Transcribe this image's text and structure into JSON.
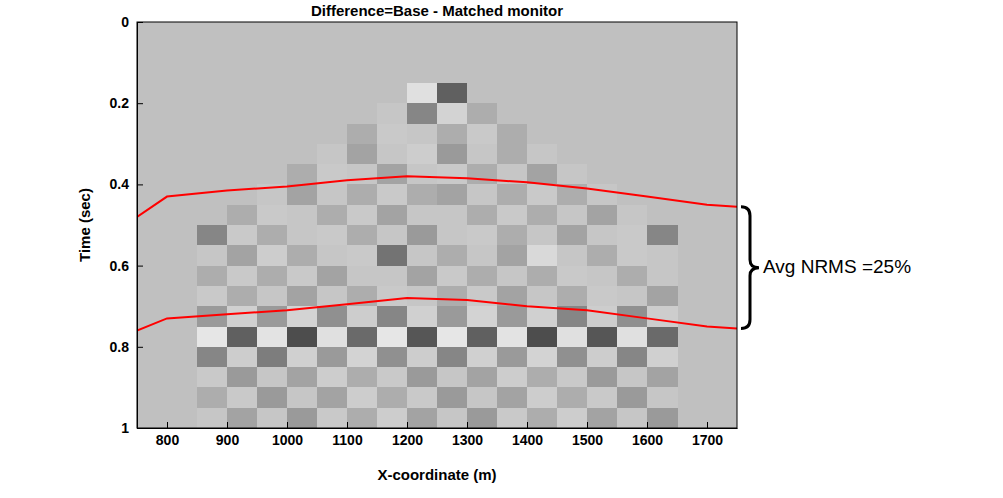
{
  "chart_data": {
    "type": "heatmap",
    "title": "Difference=Base - Matched monitor",
    "x_label": "X-coordinate (m)",
    "y_label": "Time (sec)",
    "xlim": [
      750,
      1750
    ],
    "ylim": [
      0,
      1
    ],
    "xticks": [
      800,
      900,
      1000,
      1100,
      1200,
      1300,
      1400,
      1500,
      1600,
      1700
    ],
    "yticks": [
      0,
      0.2,
      0.4,
      0.6,
      0.8,
      1
    ],
    "clim": [
      -1,
      1
    ],
    "x_bins": [
      850,
      900,
      950,
      1000,
      1050,
      1100,
      1150,
      1200,
      1250,
      1300,
      1350,
      1400,
      1450,
      1500,
      1550,
      1600,
      1650
    ],
    "y_bins": [
      0,
      0.05,
      0.1,
      0.15,
      0.2,
      0.25,
      0.3,
      0.35,
      0.4,
      0.45,
      0.5,
      0.55,
      0.6,
      0.65,
      0.7,
      0.75,
      0.8,
      0.85,
      0.9,
      0.95,
      1
    ],
    "cells": [
      [
        0,
        0,
        0,
        0,
        0,
        0,
        0,
        0,
        0,
        0,
        0,
        0,
        0,
        0,
        0,
        0
      ],
      [
        0,
        0,
        0,
        0,
        0,
        0,
        0,
        0,
        0,
        0,
        0,
        0,
        0,
        0,
        0,
        0
      ],
      [
        0,
        0,
        0,
        0,
        0,
        0,
        0,
        0,
        0,
        0,
        0,
        0,
        0,
        0,
        0,
        0
      ],
      [
        0,
        0,
        0,
        0,
        0,
        0,
        0,
        0.5,
        -0.5,
        0,
        0,
        0,
        0,
        0,
        0,
        0
      ],
      [
        0,
        0,
        0,
        0,
        0,
        0,
        0.1,
        -0.3,
        0.3,
        -0.1,
        0,
        0,
        0,
        0,
        0,
        0
      ],
      [
        0,
        0,
        0,
        0,
        0,
        -0.1,
        0.15,
        0.1,
        -0.1,
        0.15,
        -0.1,
        0,
        0,
        0,
        0,
        0
      ],
      [
        0,
        0,
        0,
        0,
        0.1,
        -0.15,
        0.1,
        0.2,
        -0.2,
        0.1,
        -0.1,
        0.1,
        0,
        0,
        0,
        0
      ],
      [
        0,
        0,
        0,
        -0.1,
        0.15,
        0.1,
        -0.15,
        0.1,
        0.15,
        -0.1,
        0.1,
        -0.15,
        0.1,
        0,
        0,
        0
      ],
      [
        0,
        0,
        0.1,
        -0.15,
        0.1,
        -0.1,
        0.15,
        -0.1,
        -0.15,
        0.1,
        -0.1,
        0.15,
        -0.1,
        0.1,
        0,
        0
      ],
      [
        0,
        -0.1,
        0.15,
        0.1,
        -0.1,
        0.15,
        -0.15,
        0.1,
        0.1,
        -0.1,
        0.15,
        -0.1,
        0.1,
        -0.15,
        0.1,
        0
      ],
      [
        -0.3,
        0.15,
        -0.1,
        0.1,
        0.15,
        -0.1,
        0.1,
        -0.2,
        0.1,
        0.15,
        -0.1,
        0.1,
        -0.15,
        0.1,
        0.15,
        -0.3
      ],
      [
        0.1,
        -0.15,
        0.2,
        -0.1,
        0.1,
        0.15,
        -0.4,
        0.1,
        -0.1,
        0.1,
        -0.15,
        0.4,
        0.1,
        -0.1,
        0.15,
        0.1
      ],
      [
        -0.1,
        0.15,
        -0.1,
        0.15,
        -0.15,
        0.1,
        0.1,
        -0.15,
        0.15,
        -0.1,
        0.1,
        -0.1,
        0.15,
        0.1,
        -0.1,
        0.1
      ],
      [
        0.15,
        -0.1,
        0.1,
        -0.15,
        0.1,
        -0.1,
        0.15,
        0.1,
        -0.1,
        0.15,
        -0.15,
        0.1,
        -0.1,
        0.15,
        0.1,
        -0.15
      ],
      [
        -0.2,
        0.25,
        -0.2,
        0.3,
        -0.25,
        0.2,
        -0.3,
        0.25,
        -0.2,
        0.3,
        -0.2,
        0.25,
        -0.3,
        0.2,
        -0.25,
        0.2
      ],
      [
        0.6,
        -0.5,
        0.55,
        -0.6,
        0.5,
        -0.45,
        0.6,
        -0.55,
        0.6,
        -0.5,
        0.55,
        -0.6,
        0.5,
        -0.55,
        0.5,
        -0.45
      ],
      [
        -0.3,
        0.2,
        -0.35,
        0.25,
        -0.2,
        0.3,
        -0.25,
        0.2,
        -0.3,
        0.25,
        -0.2,
        0.3,
        -0.25,
        0.2,
        -0.3,
        0.25
      ],
      [
        0.15,
        -0.2,
        0.1,
        -0.15,
        0.2,
        -0.1,
        0.15,
        -0.2,
        0.1,
        -0.15,
        0.2,
        -0.1,
        0.15,
        -0.2,
        0.1,
        -0.15
      ],
      [
        -0.1,
        0.15,
        -0.2,
        0.1,
        -0.15,
        0.2,
        -0.1,
        0.15,
        -0.2,
        0.1,
        -0.15,
        0.2,
        -0.1,
        0.15,
        -0.2,
        0.1
      ],
      [
        0.1,
        -0.15,
        0.1,
        -0.2,
        0.15,
        -0.1,
        0.2,
        -0.15,
        0.1,
        -0.2,
        0.15,
        -0.1,
        0.2,
        -0.15,
        0.1,
        -0.2
      ]
    ],
    "series": [
      {
        "type": "line",
        "color": "#ff0000",
        "x": [
          750,
          800,
          900,
          1000,
          1100,
          1200,
          1300,
          1400,
          1500,
          1600,
          1700,
          1750
        ],
        "values": [
          0.48,
          0.43,
          0.415,
          0.405,
          0.39,
          0.38,
          0.385,
          0.395,
          0.41,
          0.43,
          0.45,
          0.455
        ]
      },
      {
        "type": "line",
        "color": "#ff0000",
        "x": [
          750,
          800,
          900,
          1000,
          1100,
          1200,
          1300,
          1400,
          1500,
          1600,
          1700,
          1750
        ],
        "values": [
          0.76,
          0.73,
          0.72,
          0.71,
          0.695,
          0.68,
          0.685,
          0.7,
          0.71,
          0.73,
          0.75,
          0.755
        ]
      }
    ],
    "annotations": [
      {
        "text": "Avg NRMS =25%",
        "span": [
          0.455,
          0.755
        ]
      }
    ]
  }
}
